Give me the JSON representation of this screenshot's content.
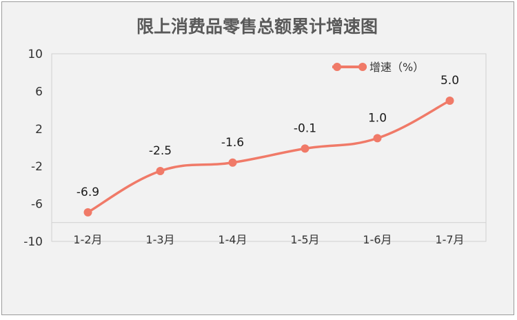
{
  "chart_data": {
    "type": "line",
    "title": "限上消费品零售总额累计增速图",
    "categories": [
      "1-2月",
      "1-3月",
      "1-4月",
      "1-5月",
      "1-6月",
      "1-7月"
    ],
    "series": [
      {
        "name": "增速（%）",
        "values": [
          -6.9,
          -2.5,
          -1.6,
          -0.1,
          1.0,
          5.0
        ],
        "labels": [
          "-6.9",
          "-2.5",
          "-1.6",
          "-0.1",
          "1.0",
          "5.0"
        ],
        "color": "#f07a68"
      }
    ],
    "ylim": [
      -10,
      10
    ],
    "yticks": [
      "10",
      "6",
      "2",
      "-2",
      "-6",
      "-10"
    ],
    "ytick_values": [
      10,
      6,
      2,
      -2,
      -6,
      -10
    ],
    "xlabel": "",
    "ylabel": "",
    "grid": false,
    "legend_position": "top-right",
    "smooth": true
  }
}
